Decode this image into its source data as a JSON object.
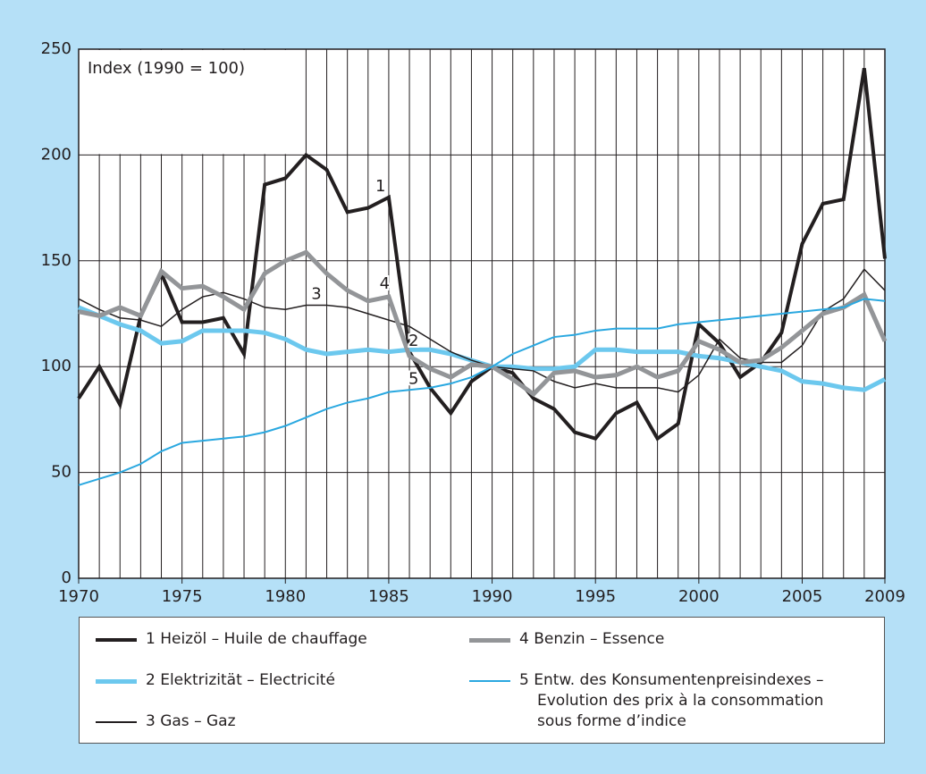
{
  "chart_data": {
    "type": "line",
    "y_label": "Index (1990 = 100)",
    "x": [
      1970,
      1971,
      1972,
      1973,
      1974,
      1975,
      1976,
      1977,
      1978,
      1979,
      1980,
      1981,
      1982,
      1983,
      1984,
      1985,
      1986,
      1987,
      1988,
      1989,
      1990,
      1991,
      1992,
      1993,
      1994,
      1995,
      1996,
      1997,
      1998,
      1999,
      2000,
      2001,
      2002,
      2003,
      2004,
      2005,
      2006,
      2007,
      2008,
      2009
    ],
    "xlim": [
      1970,
      2009
    ],
    "xticks": [
      1970,
      1975,
      1980,
      1985,
      1990,
      1995,
      2000,
      2005,
      2009
    ],
    "ylim": [
      0,
      250
    ],
    "yticks": [
      0,
      50,
      100,
      150,
      200,
      250
    ],
    "grid": true,
    "series": [
      {
        "name": "1 Heizöl – Huile de chauffage",
        "color": "#231f20",
        "width": 4,
        "values": [
          85,
          100,
          82,
          124,
          144,
          121,
          121,
          123,
          106,
          186,
          189,
          200,
          193,
          173,
          175,
          180,
          107,
          90,
          78,
          93,
          100,
          97,
          85,
          80,
          69,
          66,
          78,
          83,
          66,
          73,
          120,
          111,
          95,
          102,
          116,
          158,
          177,
          179,
          241,
          151
        ]
      },
      {
        "name": "2 Elektrizität – Electricité",
        "color": "#6cc8ee",
        "width": 5,
        "values": [
          128,
          124,
          120,
          117,
          111,
          112,
          117,
          117,
          117,
          116,
          113,
          108,
          106,
          107,
          108,
          107,
          108,
          108,
          106,
          103,
          100,
          100,
          99,
          99,
          100,
          108,
          108,
          107,
          107,
          107,
          105,
          104,
          102,
          100,
          98,
          93,
          92,
          90,
          89,
          94
        ]
      },
      {
        "name": "3 Gas – Gaz",
        "color": "#231f20",
        "width": 1.5,
        "values": [
          132,
          127,
          123,
          122,
          119,
          127,
          133,
          135,
          132,
          128,
          127,
          129,
          129,
          128,
          125,
          122,
          119,
          113,
          107,
          103,
          100,
          99,
          98,
          93,
          90,
          92,
          90,
          90,
          90,
          88,
          96,
          113,
          104,
          102,
          102,
          110,
          126,
          132,
          146,
          136
        ]
      },
      {
        "name": "4 Benzin – Essence",
        "color": "#939598",
        "width": 5,
        "values": [
          126,
          124,
          128,
          124,
          145,
          137,
          138,
          133,
          127,
          144,
          150,
          154,
          144,
          136,
          131,
          133,
          105,
          99,
          95,
          101,
          100,
          94,
          87,
          97,
          98,
          95,
          96,
          100,
          95,
          98,
          112,
          108,
          102,
          103,
          109,
          117,
          125,
          128,
          134,
          112
        ]
      },
      {
        "name": "5 Entw. des Konsumentenpreisindexes – Evolution des prix à la consommation sous forme d’indice",
        "color": "#2aa8e0",
        "width": 2,
        "values": [
          44,
          47,
          50,
          54,
          60,
          64,
          65,
          66,
          67,
          69,
          72,
          76,
          80,
          83,
          85,
          88,
          89,
          90,
          92,
          95,
          100,
          106,
          110,
          114,
          115,
          117,
          118,
          118,
          118,
          120,
          121,
          122,
          123,
          124,
          125,
          126,
          127,
          128,
          132,
          131
        ]
      }
    ],
    "annotations": [
      {
        "text": "1",
        "x": 1984.6,
        "y": 185
      },
      {
        "text": "2",
        "x": 1986.2,
        "y": 112
      },
      {
        "text": "3",
        "x": 1981.5,
        "y": 134
      },
      {
        "text": "4",
        "x": 1984.8,
        "y": 139
      },
      {
        "text": "5",
        "x": 1986.2,
        "y": 94
      }
    ]
  }
}
